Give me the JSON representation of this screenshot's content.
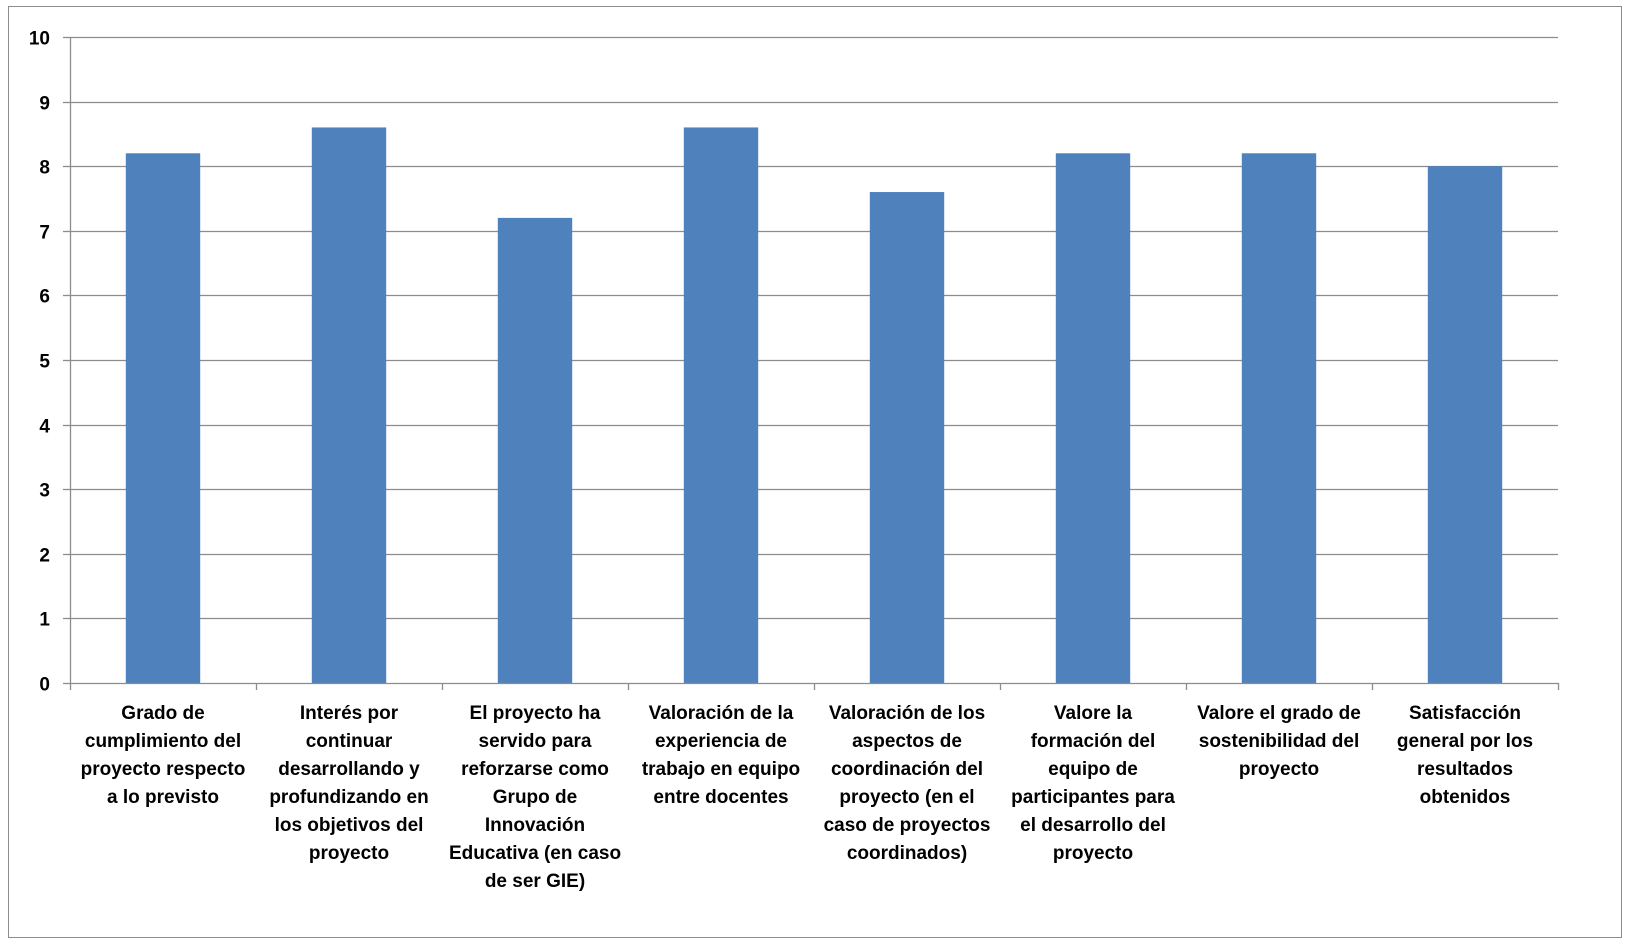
{
  "chart_data": {
    "type": "bar",
    "categories": [
      "Grado de cumplimiento del proyecto respecto a lo previsto",
      "Interés por continuar desarrollando y profundizando en los objetivos del proyecto",
      "El proyecto ha servido para reforzarse como Grupo de Innovación Educativa (en caso de ser GIE)",
      "Valoración de la experiencia de trabajo en equipo entre docentes",
      "Valoración de los aspectos de coordinación del proyecto (en el caso de proyectos coordinados)",
      "Valore la formación del equipo de participantes para el desarrollo del proyecto",
      "Valore el grado de sostenibilidad del proyecto",
      "Satisfacción general por los resultados obtenidos"
    ],
    "category_label_lines": [
      [
        "Grado de",
        "cumplimiento del",
        "proyecto respecto",
        "a lo previsto"
      ],
      [
        "Interés por",
        "continuar",
        "desarrollando y",
        "profundizando en",
        "los objetivos del",
        "proyecto"
      ],
      [
        "El proyecto ha",
        "servido para",
        "reforzarse como",
        "Grupo de",
        "Innovación",
        "Educativa (en caso",
        "de ser GIE)"
      ],
      [
        "Valoración de la",
        "experiencia de",
        "trabajo en equipo",
        "entre docentes"
      ],
      [
        "Valoración de los",
        "aspectos de",
        "coordinación del",
        "proyecto (en el",
        "caso de proyectos",
        "coordinados)"
      ],
      [
        "Valore la",
        "formación del",
        "equipo de",
        "participantes para",
        "el desarrollo del",
        "proyecto"
      ],
      [
        "Valore el grado de",
        "sostenibilidad del",
        "proyecto"
      ],
      [
        "Satisfacción",
        "general por los",
        "resultados",
        "obtenidos"
      ]
    ],
    "values": [
      8.2,
      8.6,
      7.2,
      8.6,
      7.6,
      8.2,
      8.2,
      8.0
    ],
    "yticks": [
      "0",
      "1",
      "2",
      "3",
      "4",
      "5",
      "6",
      "7",
      "8",
      "9",
      "10"
    ],
    "ylim": [
      0,
      10
    ],
    "grid": true,
    "legend": "none",
    "bar_color": "#4f81bd",
    "grid_color": "#8c8c8c",
    "axis_color": "#8c8c8c"
  }
}
